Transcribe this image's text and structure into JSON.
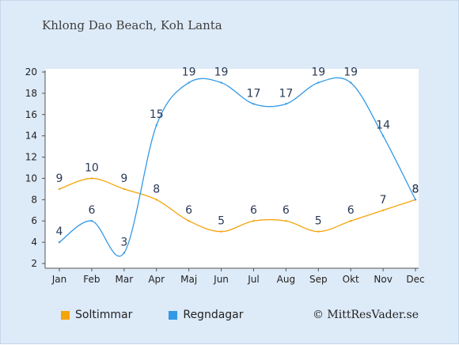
{
  "chart_data": {
    "type": "line",
    "title": "Khlong Dao Beach, Koh Lanta",
    "categories": [
      "Jan",
      "Feb",
      "Mar",
      "Apr",
      "Maj",
      "Jun",
      "Jul",
      "Aug",
      "Sep",
      "Okt",
      "Nov",
      "Dec"
    ],
    "series": [
      {
        "name": "Soltimmar",
        "color": "#f5a40c",
        "values": [
          9,
          10,
          9,
          8,
          6,
          5,
          6,
          6,
          5,
          6,
          7,
          8
        ]
      },
      {
        "name": "Regndagar",
        "color": "#3399e6",
        "values": [
          4,
          6,
          3,
          15,
          19,
          19,
          17,
          17,
          19,
          19,
          14,
          8
        ]
      }
    ],
    "ylim": [
      2,
      20
    ],
    "yticks": [
      2,
      4,
      6,
      8,
      10,
      12,
      14,
      16,
      18,
      20
    ],
    "grid": false,
    "legend_position": "bottom-left",
    "copyright": "© MittResVader.se"
  }
}
